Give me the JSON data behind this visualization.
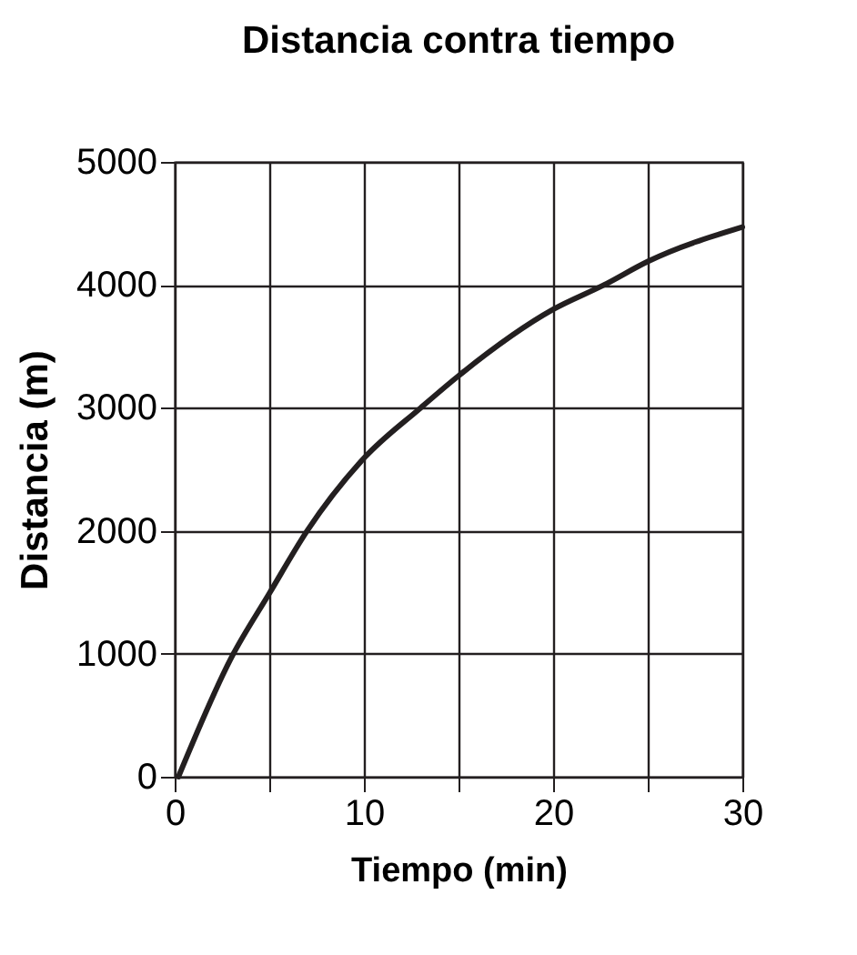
{
  "chart_data": {
    "type": "line",
    "title": "Distancia contra tiempo",
    "xlabel": "Tiempo (min)",
    "ylabel": "Distancia (m)",
    "x": [
      0.2,
      3,
      5,
      7,
      10,
      13,
      15,
      20,
      22.7,
      25,
      30
    ],
    "series": [
      {
        "color": "#231f20",
        "values": [
          0,
          970,
          1490,
          2000,
          2590,
          3000,
          3260,
          3800,
          4000,
          4190,
          4470
        ]
      }
    ],
    "xlim": [
      0,
      30
    ],
    "xticks": [
      0,
      {
        "value": 5,
        "label": null
      },
      10,
      {
        "value": 15,
        "label": null
      },
      20,
      {
        "value": 25,
        "label": null
      },
      30
    ],
    "ylim": [
      0,
      5000
    ],
    "yticks": [
      0,
      1000,
      2000,
      3000,
      4000,
      5000
    ],
    "grid": true,
    "marker": "none",
    "line_style": "solid"
  }
}
